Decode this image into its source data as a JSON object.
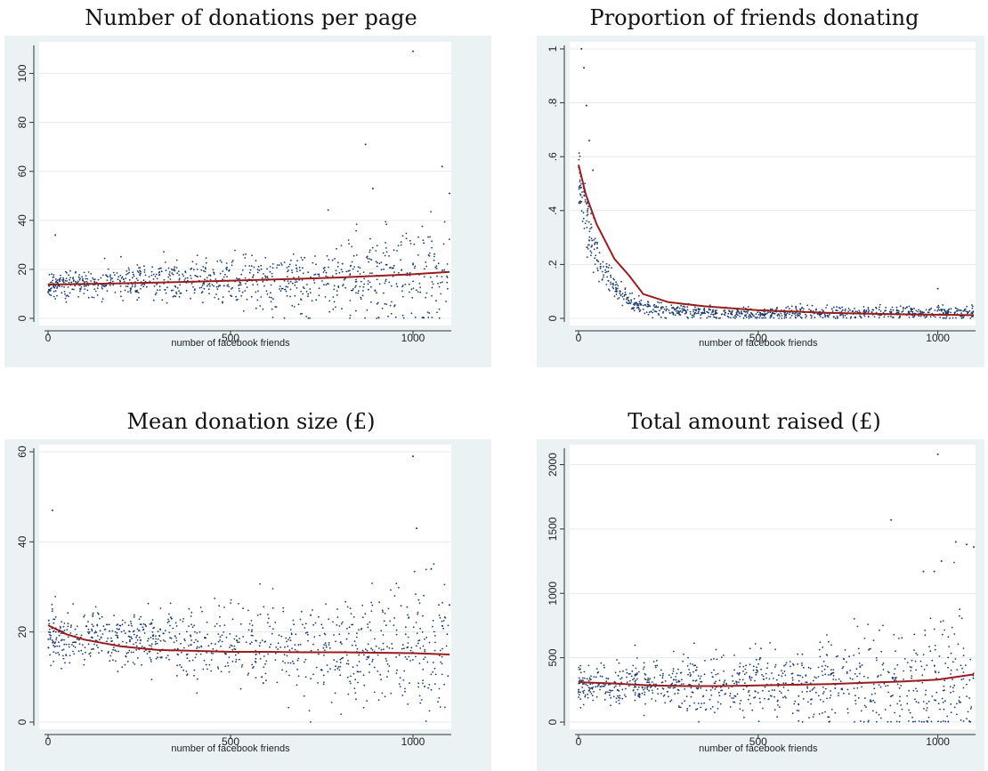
{
  "colors": {
    "panel_background": "#eaf2f3",
    "plot_background": "#ffffff",
    "point_color": "#1a3b6e",
    "fit_line_color": "#9b1c1c",
    "grid_color": "#e6eaec"
  },
  "chart_data": [
    {
      "type": "scatter",
      "title": "Number of donations per page",
      "xlabel": "number of facebook friends",
      "ylabel": "",
      "xlim": [
        0,
        1100
      ],
      "ylim": [
        0,
        110
      ],
      "x_ticks": [
        0,
        500,
        1000
      ],
      "x_tick_labels": [
        "0",
        "500",
        "1000"
      ],
      "y_ticks": [
        0,
        20,
        40,
        60,
        80,
        100
      ],
      "y_tick_labels": [
        "0",
        "20",
        "40",
        "60",
        "80",
        "100"
      ],
      "fit_line": {
        "x": [
          0,
          100,
          200,
          300,
          400,
          500,
          600,
          700,
          800,
          900,
          1000,
          1100
        ],
        "y": [
          13.8,
          14.0,
          14.3,
          14.6,
          15.0,
          15.4,
          15.8,
          16.2,
          16.7,
          17.3,
          18.0,
          19.0
        ]
      },
      "highlighted_points": {
        "x": [
          20,
          870,
          890,
          1000,
          1080,
          1100
        ],
        "y": [
          34,
          71,
          53,
          109,
          62,
          51
        ]
      },
      "point_spread": {
        "x_range": [
          0,
          1100
        ],
        "center_start": 14,
        "center_end": 17,
        "spread_start": 3,
        "spread_end": 12
      }
    },
    {
      "type": "scatter",
      "title": "Proportion of friends donating",
      "xlabel": "number of facebook friends",
      "ylabel": "",
      "xlim": [
        0,
        1100
      ],
      "ylim": [
        0,
        1
      ],
      "x_ticks": [
        0,
        500,
        1000
      ],
      "x_tick_labels": [
        "0",
        "500",
        "1000"
      ],
      "y_ticks": [
        0,
        0.2,
        0.4,
        0.6,
        0.8,
        1
      ],
      "y_tick_labels": [
        "0",
        ".2",
        ".4",
        ".6",
        ".8",
        "1"
      ],
      "fit_line": {
        "x": [
          0,
          20,
          50,
          100,
          140,
          180,
          250,
          350,
          500,
          700,
          900,
          1100
        ],
        "y": [
          0.57,
          0.46,
          0.35,
          0.22,
          0.16,
          0.09,
          0.06,
          0.045,
          0.03,
          0.02,
          0.015,
          0.012
        ]
      },
      "highlighted_points": {
        "x": [
          8,
          15,
          22,
          30,
          40,
          1000
        ],
        "y": [
          1.0,
          0.93,
          0.79,
          0.66,
          0.55,
          0.11
        ]
      },
      "point_spread": {
        "x_range": [
          0,
          1100
        ],
        "decay_a": 0.5,
        "decay_b": 60,
        "floor": 0.02
      }
    },
    {
      "type": "scatter",
      "title": "Mean donation size (£)",
      "xlabel": "number of facebook friends",
      "ylabel": "",
      "xlim": [
        0,
        1100
      ],
      "ylim": [
        0,
        60
      ],
      "x_ticks": [
        0,
        500,
        1000
      ],
      "x_tick_labels": [
        "0",
        "500",
        "1000"
      ],
      "y_ticks": [
        0,
        20,
        40,
        60
      ],
      "y_tick_labels": [
        "0",
        "20",
        "40",
        "60"
      ],
      "fit_line": {
        "x": [
          0,
          50,
          100,
          200,
          300,
          400,
          500,
          600,
          700,
          800,
          900,
          1000,
          1100
        ],
        "y": [
          21.5,
          19.5,
          18.3,
          16.8,
          16.0,
          15.8,
          15.6,
          15.6,
          15.5,
          15.5,
          15.4,
          15.3,
          15.0
        ]
      },
      "highlighted_points": {
        "x": [
          12,
          1000,
          1010,
          1050,
          1100
        ],
        "y": [
          47,
          59,
          43,
          34,
          26
        ]
      },
      "point_spread": {
        "x_range": [
          0,
          1100
        ],
        "center_start": 19,
        "center_end": 15,
        "spread_start": 3,
        "spread_end": 8
      }
    },
    {
      "type": "scatter",
      "title": "Total amount raised (£)",
      "xlabel": "number of facebook friends",
      "ylabel": "",
      "xlim": [
        0,
        1100
      ],
      "ylim": [
        0,
        2100
      ],
      "x_ticks": [
        0,
        500,
        1000
      ],
      "x_tick_labels": [
        "0",
        "500",
        "1000"
      ],
      "y_ticks": [
        0,
        500,
        1000,
        1500,
        2000
      ],
      "y_tick_labels": [
        "0",
        "500",
        "1000",
        "1500",
        "2000"
      ],
      "fit_line": {
        "x": [
          0,
          100,
          200,
          300,
          400,
          500,
          600,
          700,
          800,
          900,
          1000,
          1100
        ],
        "y": [
          310,
          300,
          285,
          280,
          280,
          285,
          290,
          295,
          305,
          315,
          330,
          370
        ]
      },
      "highlighted_points": {
        "x": [
          1000,
          870,
          1010,
          1050,
          1080,
          1100,
          960,
          990
        ],
        "y": [
          2080,
          1570,
          1250,
          1400,
          1380,
          1360,
          1170,
          1170
        ]
      },
      "point_spread": {
        "x_range": [
          0,
          1100
        ],
        "center_start": 290,
        "center_end": 320,
        "spread_start": 80,
        "spread_end": 300
      }
    }
  ]
}
